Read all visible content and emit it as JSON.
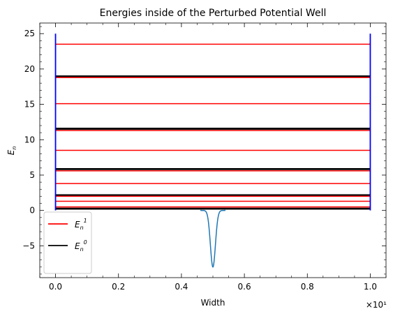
{
  "chart_data": {
    "type": "line",
    "title": "Energies inside of the Perturbed Potential Well",
    "xlabel": "Width",
    "ylabel": "E_n",
    "x_offset_label": "×10¹",
    "x_scale_multiplier": 10,
    "xlim": [
      -0.5,
      10.5
    ],
    "ylim": [
      -9.5,
      26.5
    ],
    "xticks": [
      0,
      2,
      4,
      6,
      8,
      10
    ],
    "xtick_labels": [
      "0.0",
      "0.2",
      "0.4",
      "0.6",
      "0.8",
      "1.0"
    ],
    "yticks": [
      -5,
      0,
      5,
      10,
      15,
      20,
      25
    ],
    "ytick_labels": [
      "−5",
      "0",
      "5",
      "10",
      "15",
      "20",
      "25"
    ],
    "grid": false,
    "legend_position": "lower-left",
    "well": {
      "x_left": 0,
      "x_right": 10,
      "y_bottom": 0,
      "y_top": 25,
      "color": "#0000ff"
    },
    "unperturbed_levels": {
      "name": "E_n^0",
      "color": "#000000",
      "values": [
        0.2,
        0.3,
        2.1,
        2.2,
        5.8,
        5.9,
        11.5,
        11.6,
        18.9,
        19.0
      ]
    },
    "perturbed_levels": {
      "name": "E_n^1",
      "color": "#ff0000",
      "values": [
        0.5,
        1.3,
        2.0,
        3.8,
        5.6,
        8.5,
        11.3,
        15.1,
        18.8,
        23.5
      ]
    },
    "perturbation": {
      "color": "#1f77b4",
      "center": 5.0,
      "depth": -8.0,
      "sigma": 0.08,
      "x_range": [
        4.6,
        5.4
      ]
    }
  }
}
